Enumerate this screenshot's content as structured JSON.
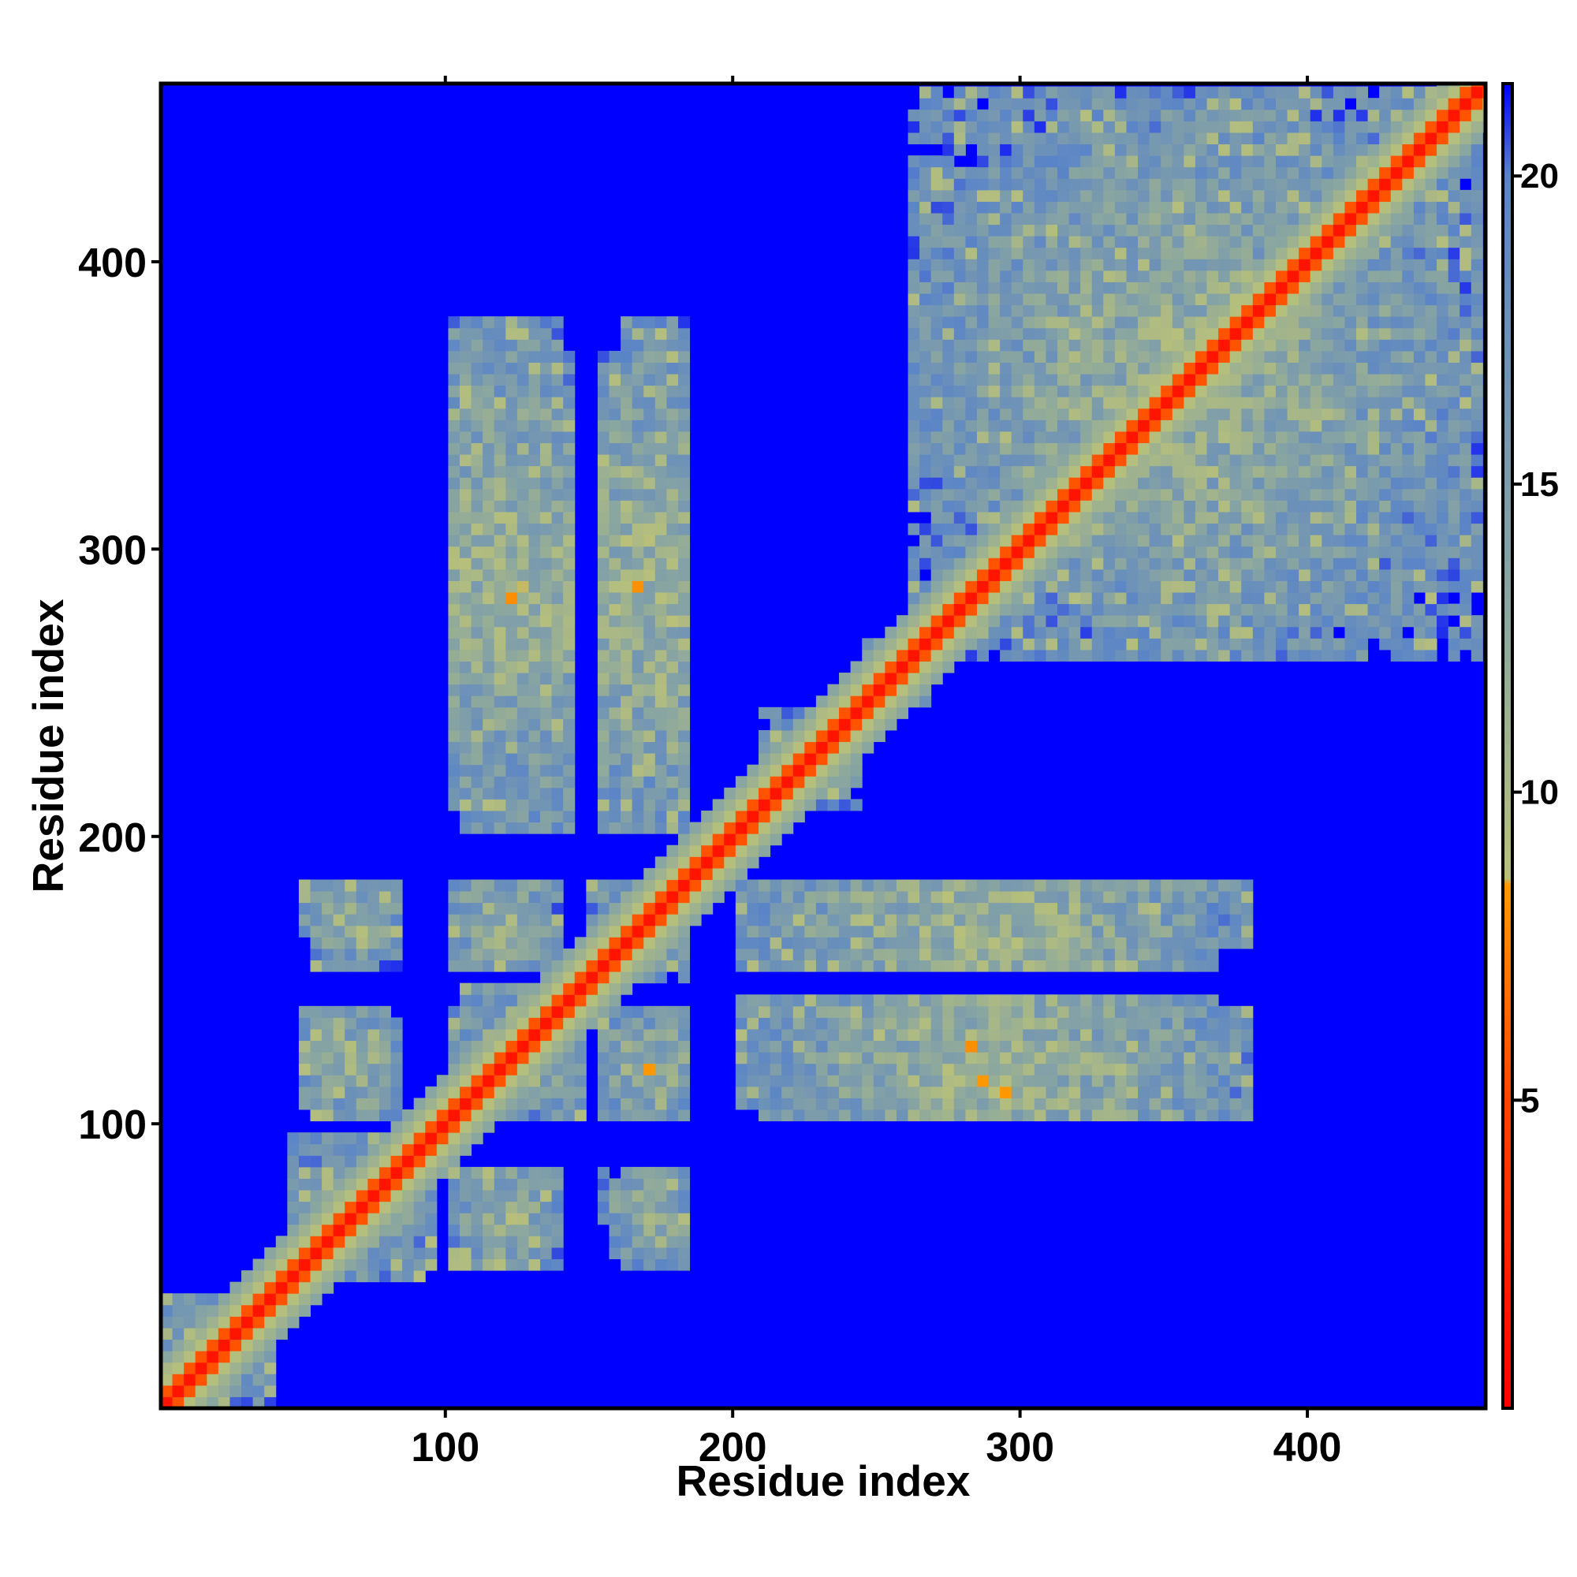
{
  "chart_data": {
    "type": "heatmap",
    "title": "",
    "xlabel": "Residue index",
    "ylabel": "Residue index",
    "xlim": [
      1,
      462
    ],
    "ylim": [
      1,
      462
    ],
    "x_ticks": [
      "100",
      "200",
      "300",
      "400"
    ],
    "y_ticks": [
      "100",
      "200",
      "300",
      "400"
    ],
    "colorbar": {
      "ticks": [
        "5",
        "10",
        "15",
        "20"
      ],
      "range": [
        0,
        21.5
      ],
      "stops": [
        {
          "value": 0,
          "color": "#ff0000"
        },
        {
          "value": 5,
          "color": "#ff4400"
        },
        {
          "value": 8.5,
          "color": "#ff9900"
        },
        {
          "value": 8.6,
          "color": "#b8c07a"
        },
        {
          "value": 13,
          "color": "#8aa6a0"
        },
        {
          "value": 20,
          "color": "#5a84c8"
        },
        {
          "value": 21.5,
          "color": "#0000ff"
        }
      ]
    },
    "background_color": "#0000ff",
    "values_description_units": "distance",
    "blocks": [
      {
        "x": [
          1,
          40
        ],
        "y": [
          1,
          40
        ]
      },
      {
        "x": [
          45,
          95
        ],
        "y": [
          45,
          95
        ]
      },
      {
        "x": [
          100,
          150
        ],
        "y": [
          100,
          150
        ]
      },
      {
        "x": [
          150,
          185
        ],
        "y": [
          150,
          185
        ]
      },
      {
        "x": [
          210,
          245
        ],
        "y": [
          210,
          245
        ]
      },
      {
        "x": [
          245,
          270
        ],
        "y": [
          245,
          270
        ]
      },
      {
        "x": [
          260,
          460
        ],
        "y": [
          260,
          460
        ]
      },
      {
        "x": [
          50,
          80
        ],
        "y": [
          100,
          140
        ]
      },
      {
        "x": [
          50,
          80
        ],
        "y": [
          160,
          185
        ]
      },
      {
        "x": [
          100,
          140
        ],
        "y": [
          55,
          85
        ]
      },
      {
        "x": [
          100,
          140
        ],
        "y": [
          160,
          185
        ]
      },
      {
        "x": [
          155,
          185
        ],
        "y": [
          100,
          140
        ]
      },
      {
        "x": [
          155,
          185
        ],
        "y": [
          55,
          85
        ]
      },
      {
        "x": [
          105,
          145
        ],
        "y": [
          200,
          370
        ]
      },
      {
        "x": [
          155,
          185
        ],
        "y": [
          200,
          370
        ]
      },
      {
        "x": [
          210,
          380
        ],
        "y": [
          100,
          140
        ]
      },
      {
        "x": [
          210,
          380
        ],
        "y": [
          160,
          185
        ]
      }
    ]
  }
}
